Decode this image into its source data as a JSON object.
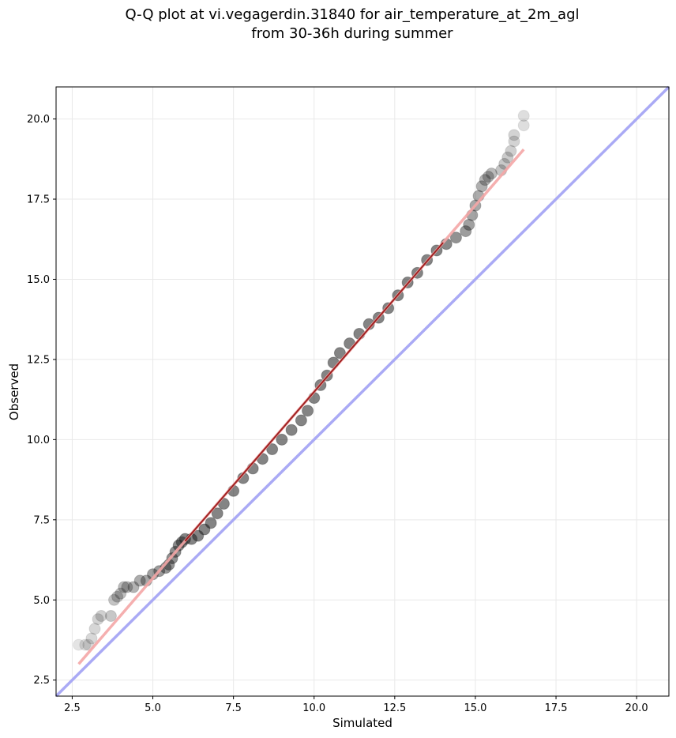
{
  "colors": {
    "points": "#1f1f1f",
    "fit_line": "#f4a6a6",
    "fit_line_dense": "#8b0000",
    "reference_line": "#aaaaf5",
    "grid": "#e9e9e9"
  },
  "chart_data": {
    "type": "scatter",
    "title": [
      "Q-Q plot at vi.vegagerdin.31840 for air_temperature_at_2m_agl",
      "from 30-36h during summer"
    ],
    "xlabel": "Simulated",
    "ylabel": "Observed",
    "xlim": [
      2.0,
      21.0
    ],
    "ylim": [
      2.0,
      21.0
    ],
    "grid": true,
    "x_ticks": [
      2.5,
      5.0,
      7.5,
      10.0,
      12.5,
      15.0,
      17.5,
      20.0
    ],
    "y_ticks": [
      2.5,
      5.0,
      7.5,
      10.0,
      12.5,
      15.0,
      17.5,
      20.0
    ],
    "x_tick_labels": [
      "2.5",
      "5.0",
      "7.5",
      "10.0",
      "12.5",
      "15.0",
      "17.5",
      "20.0"
    ],
    "y_tick_labels": [
      "2.5",
      "5.0",
      "7.5",
      "10.0",
      "12.5",
      "15.0",
      "17.5",
      "20.0"
    ],
    "quantile_points": [
      [
        2.7,
        3.6
      ],
      [
        2.9,
        3.6
      ],
      [
        3.0,
        3.6
      ],
      [
        3.1,
        3.8
      ],
      [
        3.2,
        4.1
      ],
      [
        3.3,
        4.4
      ],
      [
        3.4,
        4.5
      ],
      [
        3.7,
        4.5
      ],
      [
        3.8,
        5.0
      ],
      [
        3.9,
        5.1
      ],
      [
        4.0,
        5.2
      ],
      [
        4.1,
        5.4
      ],
      [
        4.2,
        5.4
      ],
      [
        4.4,
        5.4
      ],
      [
        4.6,
        5.6
      ],
      [
        4.8,
        5.6
      ],
      [
        5.0,
        5.8
      ],
      [
        5.2,
        5.9
      ],
      [
        5.4,
        6.0
      ],
      [
        5.5,
        6.1
      ],
      [
        5.6,
        6.3
      ],
      [
        5.7,
        6.5
      ],
      [
        5.8,
        6.7
      ],
      [
        5.9,
        6.8
      ],
      [
        6.0,
        6.9
      ],
      [
        6.2,
        6.9
      ],
      [
        6.4,
        7.0
      ],
      [
        6.6,
        7.2
      ],
      [
        6.8,
        7.4
      ],
      [
        7.0,
        7.7
      ],
      [
        7.2,
        8.0
      ],
      [
        7.5,
        8.4
      ],
      [
        7.8,
        8.8
      ],
      [
        8.1,
        9.1
      ],
      [
        8.4,
        9.4
      ],
      [
        8.7,
        9.7
      ],
      [
        9.0,
        10.0
      ],
      [
        9.3,
        10.3
      ],
      [
        9.6,
        10.6
      ],
      [
        9.8,
        10.9
      ],
      [
        10.0,
        11.3
      ],
      [
        10.2,
        11.7
      ],
      [
        10.4,
        12.0
      ],
      [
        10.6,
        12.4
      ],
      [
        10.8,
        12.7
      ],
      [
        11.1,
        13.0
      ],
      [
        11.4,
        13.3
      ],
      [
        11.7,
        13.6
      ],
      [
        12.0,
        13.8
      ],
      [
        12.3,
        14.1
      ],
      [
        12.6,
        14.5
      ],
      [
        12.9,
        14.9
      ],
      [
        13.2,
        15.2
      ],
      [
        13.5,
        15.6
      ],
      [
        13.8,
        15.9
      ],
      [
        14.1,
        16.1
      ],
      [
        14.4,
        16.3
      ],
      [
        14.7,
        16.5
      ],
      [
        14.8,
        16.7
      ],
      [
        14.9,
        17.0
      ],
      [
        15.0,
        17.3
      ],
      [
        15.1,
        17.6
      ],
      [
        15.2,
        17.9
      ],
      [
        15.3,
        18.1
      ],
      [
        15.4,
        18.2
      ],
      [
        15.5,
        18.3
      ],
      [
        15.8,
        18.4
      ],
      [
        15.9,
        18.6
      ],
      [
        16.0,
        18.8
      ],
      [
        16.1,
        19.0
      ],
      [
        16.2,
        19.3
      ],
      [
        16.2,
        19.5
      ],
      [
        16.5,
        19.8
      ],
      [
        16.5,
        20.1
      ]
    ],
    "fit_line": {
      "x": [
        2.7,
        16.5
      ],
      "y": [
        3.0,
        19.05
      ]
    },
    "reference_line": {
      "x": [
        2.0,
        21.0
      ],
      "y": [
        2.0,
        21.0
      ]
    }
  }
}
